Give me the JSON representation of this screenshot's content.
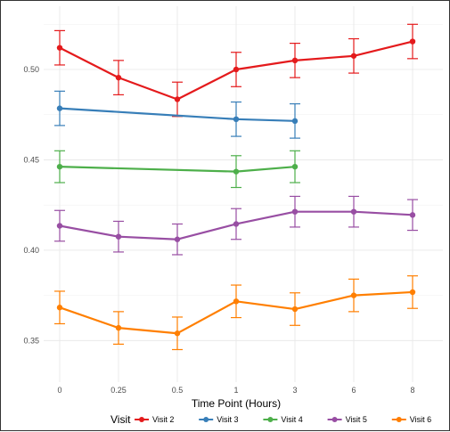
{
  "chart_data": {
    "type": "line",
    "title": "",
    "xlabel": "Time Point (Hours)",
    "ylabel": "",
    "categories": [
      "0",
      "0.25",
      "0.5",
      "1",
      "3",
      "6",
      "8"
    ],
    "ylim": [
      0.327,
      0.535
    ],
    "yticks": [
      "0.35",
      "0.40",
      "0.45",
      "0.50"
    ],
    "ytick_values": [
      0.35,
      0.4,
      0.45,
      0.5
    ],
    "grid": true,
    "legend_title": "Visit",
    "legend_position": "bottom",
    "error_bars": true,
    "series": [
      {
        "name": "Visit 2",
        "color": "#e41a1c",
        "points": [
          {
            "x": "0",
            "y": 0.512,
            "err": 0.0095
          },
          {
            "x": "0.25",
            "y": 0.4955,
            "err": 0.0095
          },
          {
            "x": "0.5",
            "y": 0.4835,
            "err": 0.0095
          },
          {
            "x": "1",
            "y": 0.5,
            "err": 0.0095
          },
          {
            "x": "3",
            "y": 0.505,
            "err": 0.0095
          },
          {
            "x": "6",
            "y": 0.5075,
            "err": 0.0095
          },
          {
            "x": "8",
            "y": 0.5155,
            "err": 0.0095
          }
        ]
      },
      {
        "name": "Visit 3",
        "color": "#377eb8",
        "points": [
          {
            "x": "0",
            "y": 0.4785,
            "err": 0.0095
          },
          {
            "x": "1",
            "y": 0.4725,
            "err": 0.0095
          },
          {
            "x": "3",
            "y": 0.4715,
            "err": 0.0095
          }
        ]
      },
      {
        "name": "Visit 4",
        "color": "#4daf4a",
        "points": [
          {
            "x": "0",
            "y": 0.4462,
            "err": 0.0088
          },
          {
            "x": "1",
            "y": 0.4435,
            "err": 0.0088
          },
          {
            "x": "3",
            "y": 0.4462,
            "err": 0.0088
          }
        ]
      },
      {
        "name": "Visit 5",
        "color": "#984ea3",
        "points": [
          {
            "x": "0",
            "y": 0.4135,
            "err": 0.0085
          },
          {
            "x": "0.25",
            "y": 0.4075,
            "err": 0.0085
          },
          {
            "x": "0.5",
            "y": 0.406,
            "err": 0.0085
          },
          {
            "x": "1",
            "y": 0.4145,
            "err": 0.0085
          },
          {
            "x": "3",
            "y": 0.4213,
            "err": 0.0085
          },
          {
            "x": "6",
            "y": 0.4213,
            "err": 0.0085
          },
          {
            "x": "8",
            "y": 0.4195,
            "err": 0.0085
          }
        ]
      },
      {
        "name": "Visit 6",
        "color": "#ff7f00",
        "points": [
          {
            "x": "0",
            "y": 0.3683,
            "err": 0.009
          },
          {
            "x": "0.25",
            "y": 0.357,
            "err": 0.009
          },
          {
            "x": "0.5",
            "y": 0.354,
            "err": 0.009
          },
          {
            "x": "1",
            "y": 0.3717,
            "err": 0.009
          },
          {
            "x": "3",
            "y": 0.3674,
            "err": 0.009
          },
          {
            "x": "6",
            "y": 0.375,
            "err": 0.009
          },
          {
            "x": "8",
            "y": 0.3768,
            "err": 0.009
          }
        ]
      }
    ]
  }
}
